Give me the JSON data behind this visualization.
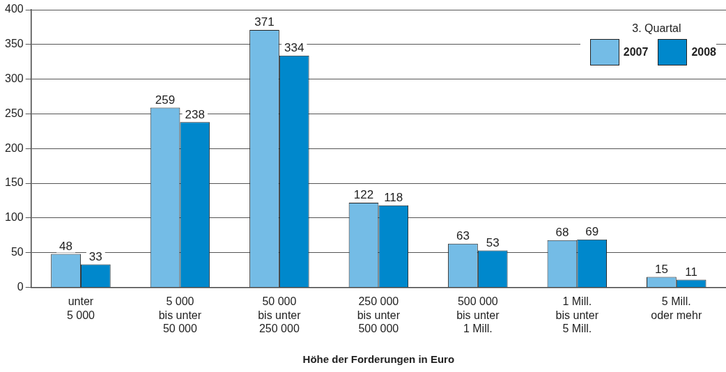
{
  "chart_data": {
    "type": "bar",
    "xlabel": "Höhe der Forderungen in Euro",
    "legend_title": "3. Quartal",
    "categories": [
      "unter\n5 000",
      "5 000\nbis unter\n50 000",
      "50 000\nbis unter\n250 000",
      "250 000\nbis unter\n500 000",
      "500 000\nbis unter\n1 Mill.",
      "1 Mill.\nbis unter\n5 Mill.",
      "5 Mill.\noder mehr"
    ],
    "series": [
      {
        "name": "2007",
        "color": "#74bce6",
        "values": [
          48,
          259,
          371,
          122,
          63,
          68,
          15
        ]
      },
      {
        "name": "2008",
        "color": "#0088cc",
        "values": [
          33,
          238,
          334,
          118,
          53,
          69,
          11
        ]
      }
    ],
    "ylim": [
      0,
      400
    ],
    "yticks": [
      0,
      50,
      100,
      150,
      200,
      250,
      300,
      350,
      400
    ],
    "grid": "y",
    "legend": "top right",
    "data_labels": true
  }
}
